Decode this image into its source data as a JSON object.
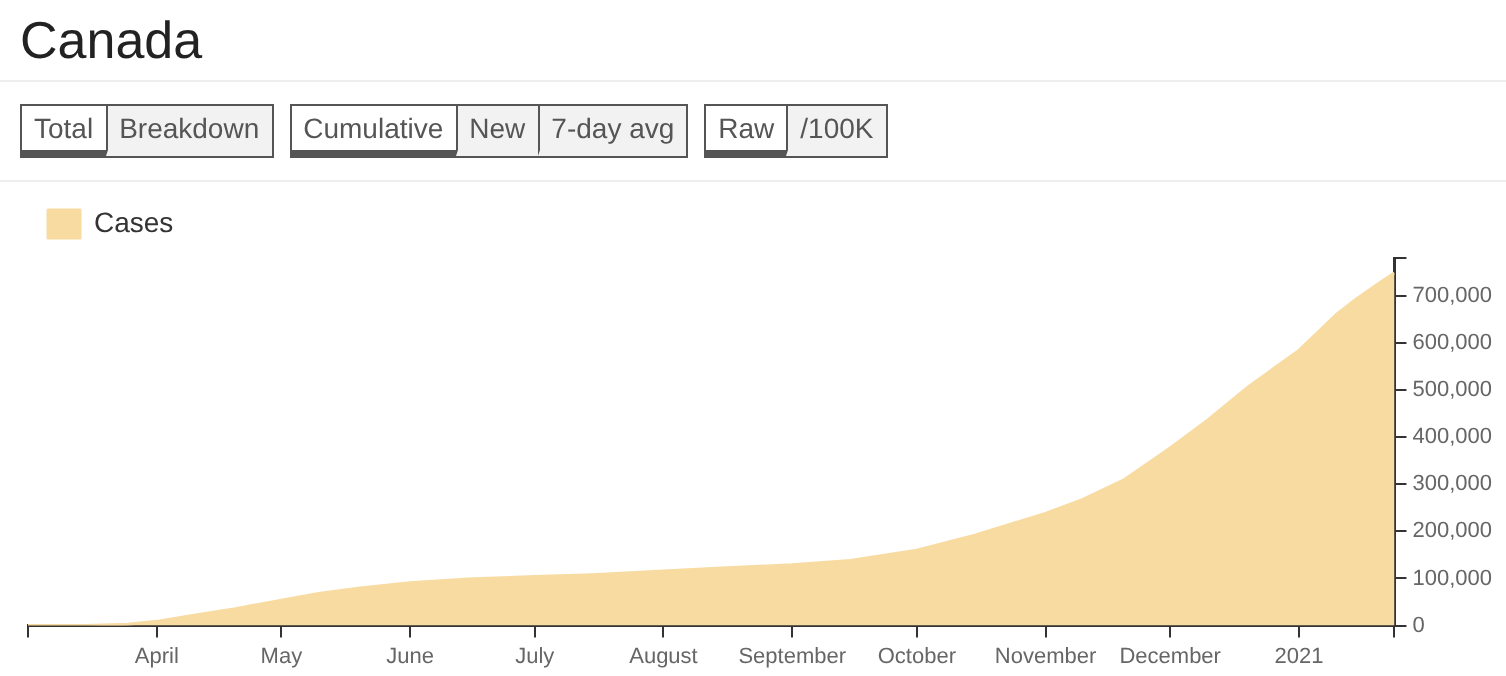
{
  "chart_data": {
    "type": "area",
    "title": "Canada",
    "annotations": [
      "Total",
      "Breakdown",
      "Cumulative",
      "New",
      "7-day avg",
      "Raw",
      "/100K"
    ],
    "x": [
      "2020-03-01",
      "2020-03-15",
      "2020-03-25",
      "2020-04-01",
      "2020-04-10",
      "2020-04-20",
      "2020-05-01",
      "2020-05-10",
      "2020-05-20",
      "2020-06-01",
      "2020-06-15",
      "2020-07-01",
      "2020-07-15",
      "2020-08-01",
      "2020-08-15",
      "2020-09-01",
      "2020-09-15",
      "2020-10-01",
      "2020-10-15",
      "2020-11-01",
      "2020-11-10",
      "2020-11-20",
      "2020-12-01",
      "2020-12-10",
      "2020-12-20",
      "2021-01-01",
      "2021-01-10",
      "2021-01-15",
      "2021-01-20",
      "2021-01-24"
    ],
    "series": [
      {
        "name": "Cases",
        "color": "#f8dba0",
        "values": [
          0,
          0,
          3000,
          9000,
          22000,
          36000,
          54000,
          68000,
          80000,
          91000,
          99000,
          104000,
          108000,
          116000,
          122000,
          129000,
          138000,
          160000,
          192000,
          238000,
          268000,
          310000,
          377000,
          436000,
          508000,
          584000,
          660000,
          694000,
          725000,
          748000
        ]
      }
    ],
    "xlim": [
      "2020-03-01",
      "2021-01-24"
    ],
    "xticks": [
      {
        "value": "2020-03-01",
        "label": null
      },
      {
        "value": "2020-04-01",
        "label": "April"
      },
      {
        "value": "2020-05-01",
        "label": "May"
      },
      {
        "value": "2020-06-01",
        "label": "June"
      },
      {
        "value": "2020-07-01",
        "label": "July"
      },
      {
        "value": "2020-08-01",
        "label": "August"
      },
      {
        "value": "2020-09-01",
        "label": "September"
      },
      {
        "value": "2020-10-01",
        "label": "October"
      },
      {
        "value": "2020-11-01",
        "label": "November"
      },
      {
        "value": "2020-12-01",
        "label": "December"
      },
      {
        "value": "2021-01-01",
        "label": "2021"
      },
      {
        "value": "2021-01-24",
        "label": null
      }
    ],
    "ylim": [
      0,
      780000
    ],
    "yticks": [
      0,
      {
        "value": 100000,
        "label": "100,000"
      },
      {
        "value": 200000,
        "label": "200,000"
      },
      {
        "value": 300000,
        "label": "300,000"
      },
      {
        "value": 400000,
        "label": "400,000"
      },
      {
        "value": 500000,
        "label": "500,000"
      },
      {
        "value": 600000,
        "label": "600,000"
      },
      {
        "value": 700000,
        "label": "700,000"
      },
      {
        "value": 780000,
        "label": null
      }
    ],
    "grid": false,
    "legend": "top left"
  }
}
